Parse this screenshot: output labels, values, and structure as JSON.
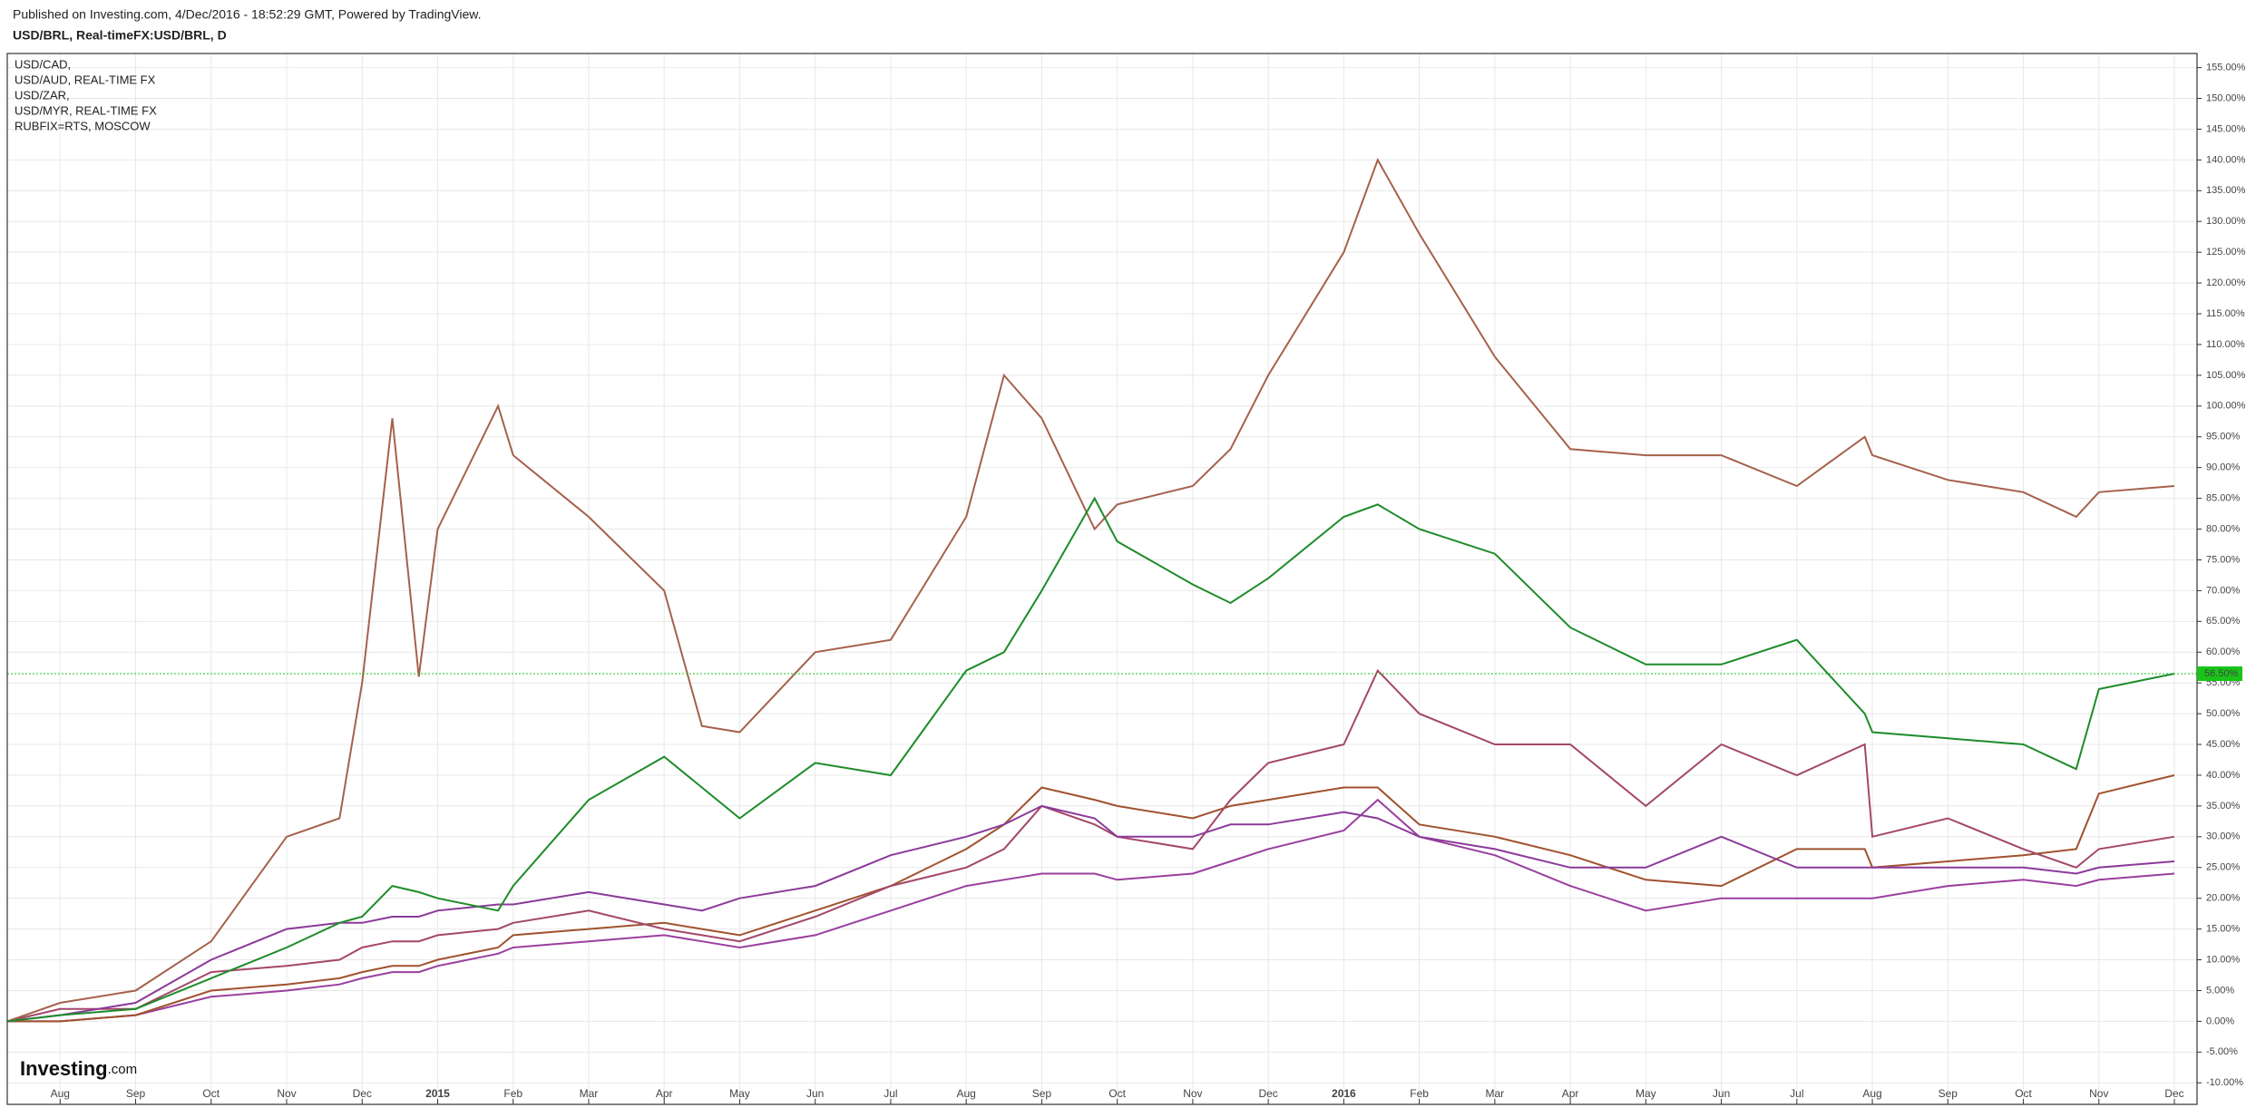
{
  "chart_data": {
    "type": "line",
    "published": "Published on Investing.com, 4/Dec/2016 - 18:52:29 GMT, Powered by TradingView.",
    "title": "USD/BRL, Real-timeFX:USD/BRL, D",
    "logo": "Investing",
    "logo_suffix": ".com",
    "x": [
      0.3,
      1,
      2,
      3,
      4,
      4.7,
      5,
      5.4,
      5.75,
      6,
      6.8,
      7,
      8,
      9,
      9.5,
      10,
      11,
      12,
      13,
      13.5,
      14,
      14.7,
      15,
      16,
      16.5,
      17,
      18,
      18.45,
      19,
      20,
      21,
      22,
      23,
      24,
      24.9,
      25,
      26,
      27,
      27.7,
      28,
      29
    ],
    "series": [
      {
        "name": "USD/CAD,",
        "color": "#9a3fa0",
        "values": [
          0,
          0,
          1,
          4,
          5,
          6,
          7,
          8,
          8,
          9,
          11,
          12,
          13,
          14,
          13,
          12,
          14,
          18,
          22,
          23,
          24,
          24,
          23,
          24,
          26,
          28,
          31,
          36,
          30,
          27,
          22,
          18,
          20,
          20,
          20,
          20,
          22,
          23,
          22,
          23,
          24
        ]
      },
      {
        "name": "USD/AUD, REAL-TIME FX",
        "color": "#a0522d",
        "values": [
          0,
          0,
          1,
          5,
          6,
          7,
          8,
          9,
          9,
          10,
          12,
          14,
          15,
          16,
          15,
          14,
          18,
          22,
          28,
          32,
          38,
          36,
          35,
          33,
          35,
          36,
          38,
          38,
          32,
          30,
          27,
          23,
          22,
          28,
          28,
          25,
          26,
          27,
          28,
          37,
          40
        ]
      },
      {
        "name": "USD/ZAR,",
        "color": "#a3476a",
        "values": [
          0,
          2,
          2,
          8,
          9,
          10,
          12,
          13,
          13,
          14,
          15,
          16,
          18,
          15,
          14,
          13,
          17,
          22,
          25,
          28,
          35,
          32,
          30,
          28,
          36,
          42,
          45,
          57,
          50,
          45,
          45,
          35,
          45,
          40,
          45,
          30,
          33,
          28,
          25,
          28,
          30
        ]
      },
      {
        "name": "USD/MYR, REAL-TIME FX",
        "color": "#8b3a99",
        "values": [
          0,
          1,
          3,
          10,
          15,
          16,
          16,
          17,
          17,
          18,
          19,
          19,
          21,
          19,
          18,
          20,
          22,
          27,
          30,
          32,
          35,
          33,
          30,
          30,
          32,
          32,
          34,
          33,
          30,
          28,
          25,
          25,
          30,
          25,
          25,
          25,
          25,
          25,
          24,
          25,
          26
        ]
      },
      {
        "name": "RUBFIX=RTS, MOSCOW",
        "color": "#a5614c",
        "values": [
          0,
          3,
          5,
          13,
          30,
          33,
          55,
          98,
          56,
          80,
          100,
          92,
          82,
          70,
          48,
          47,
          60,
          62,
          82,
          105,
          98,
          80,
          84,
          87,
          93,
          105,
          125,
          140,
          128,
          108,
          93,
          92,
          92,
          87,
          95,
          92,
          88,
          86,
          82,
          86,
          87
        ]
      },
      {
        "color": "#1e8c2a",
        "values": [
          0,
          1,
          2,
          7,
          12,
          16,
          17,
          22,
          21,
          20,
          18,
          22,
          36,
          43,
          38,
          33,
          42,
          40,
          57,
          60,
          70,
          85,
          78,
          71,
          68,
          72,
          82,
          84,
          80,
          76,
          64,
          58,
          58,
          62,
          50,
          47,
          46,
          45,
          41,
          54,
          56.5
        ]
      }
    ],
    "price_line": {
      "value": 56.5,
      "label": "56.50%",
      "color": "#19c419"
    },
    "xlim": [
      0.3,
      29.3
    ],
    "xticks": [
      {
        "value": 1,
        "label": "Aug"
      },
      {
        "value": 2,
        "label": "Sep"
      },
      {
        "value": 3,
        "label": "Oct"
      },
      {
        "value": 4,
        "label": "Nov"
      },
      {
        "value": 5,
        "label": "Dec"
      },
      {
        "value": 6,
        "label": "2015"
      },
      {
        "value": 7,
        "label": "Feb"
      },
      {
        "value": 8,
        "label": "Mar"
      },
      {
        "value": 9,
        "label": "Apr"
      },
      {
        "value": 10,
        "label": "May"
      },
      {
        "value": 11,
        "label": "Jun"
      },
      {
        "value": 12,
        "label": "Jul"
      },
      {
        "value": 13,
        "label": "Aug"
      },
      {
        "value": 14,
        "label": "Sep"
      },
      {
        "value": 15,
        "label": "Oct"
      },
      {
        "value": 16,
        "label": "Nov"
      },
      {
        "value": 17,
        "label": "Dec"
      },
      {
        "value": 18,
        "label": "2016"
      },
      {
        "value": 19,
        "label": "Feb"
      },
      {
        "value": 20,
        "label": "Mar"
      },
      {
        "value": 21,
        "label": "Apr"
      },
      {
        "value": 22,
        "label": "May"
      },
      {
        "value": 23,
        "label": "Jun"
      },
      {
        "value": 24,
        "label": "Jul"
      },
      {
        "value": 25,
        "label": "Aug"
      },
      {
        "value": 26,
        "label": "Sep"
      },
      {
        "value": 27,
        "label": "Oct"
      },
      {
        "value": 28,
        "label": "Nov"
      },
      {
        "value": 29,
        "label": "Dec"
      }
    ],
    "ylim": [
      -13.5,
      157.3
    ],
    "yticks": [
      {
        "value": -10,
        "label": "-10.00%"
      },
      {
        "value": -5,
        "label": "-5.00%"
      },
      {
        "value": 0,
        "label": "0.00%"
      },
      {
        "value": 5,
        "label": "5.00%"
      },
      {
        "value": 10,
        "label": "10.00%"
      },
      {
        "value": 15,
        "label": "15.00%"
      },
      {
        "value": 20,
        "label": "20.00%"
      },
      {
        "value": 25,
        "label": "25.00%"
      },
      {
        "value": 30,
        "label": "30.00%"
      },
      {
        "value": 35,
        "label": "35.00%"
      },
      {
        "value": 40,
        "label": "40.00%"
      },
      {
        "value": 45,
        "label": "45.00%"
      },
      {
        "value": 50,
        "label": "50.00%"
      },
      {
        "value": 55,
        "label": "55.00%"
      },
      {
        "value": 60,
        "label": "60.00%"
      },
      {
        "value": 65,
        "label": "65.00%"
      },
      {
        "value": 70,
        "label": "70.00%"
      },
      {
        "value": 75,
        "label": "75.00%"
      },
      {
        "value": 80,
        "label": "80.00%"
      },
      {
        "value": 85,
        "label": "85.00%"
      },
      {
        "value": 90,
        "label": "90.00%"
      },
      {
        "value": 95,
        "label": "95.00%"
      },
      {
        "value": 100,
        "label": "100.00%"
      },
      {
        "value": 105,
        "label": "105.00%"
      },
      {
        "value": 110,
        "label": "110.00%"
      },
      {
        "value": 115,
        "label": "115.00%"
      },
      {
        "value": 120,
        "label": "120.00%"
      },
      {
        "value": 125,
        "label": "125.00%"
      },
      {
        "value": 130,
        "label": "130.00%"
      },
      {
        "value": 135,
        "label": "135.00%"
      },
      {
        "value": 140,
        "label": "140.00%"
      },
      {
        "value": 145,
        "label": "145.00%"
      },
      {
        "value": 150,
        "label": "150.00%"
      },
      {
        "value": 155,
        "label": "155.00%"
      }
    ],
    "grid": true
  }
}
